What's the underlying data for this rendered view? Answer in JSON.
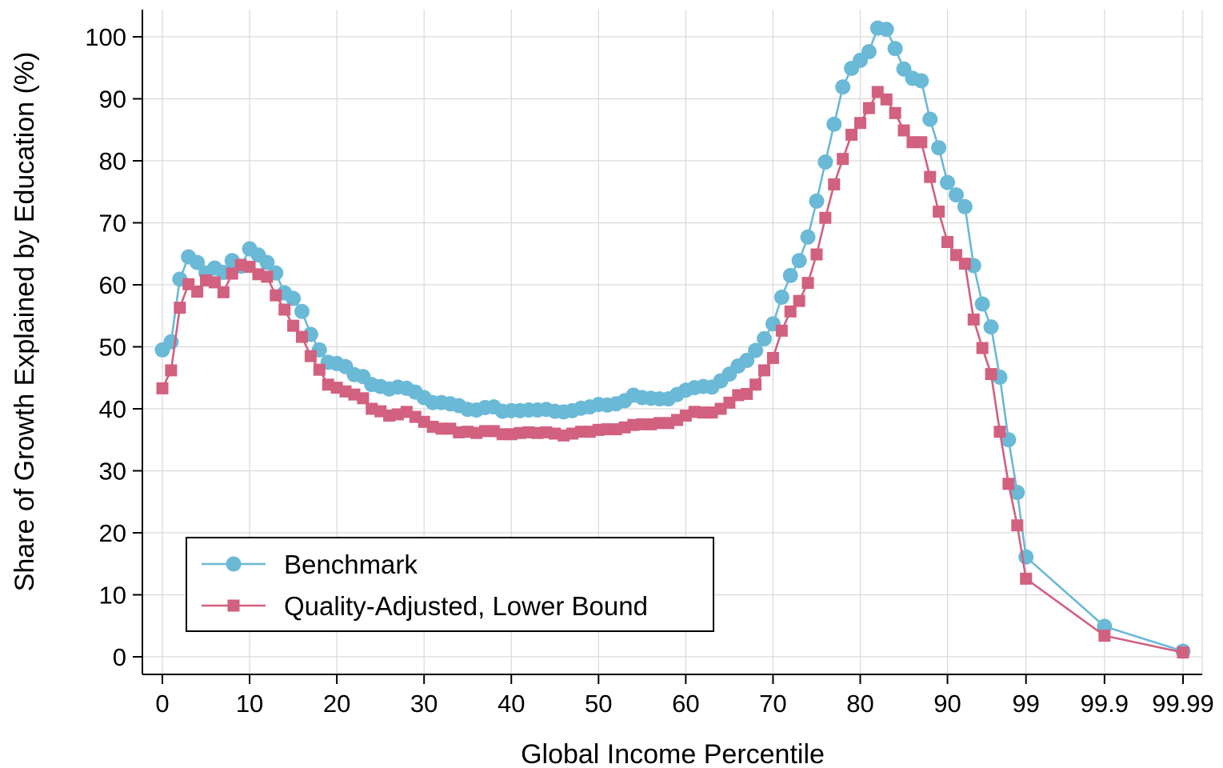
{
  "chart_data": {
    "type": "line",
    "xlabel": "Global Income Percentile",
    "ylabel": "Share of Growth Explained by Education (%)",
    "ylim": [
      0,
      100
    ],
    "yticks": [
      0,
      10,
      20,
      30,
      40,
      50,
      60,
      70,
      80,
      90,
      100
    ],
    "xtick_labels": [
      "0",
      "10",
      "20",
      "30",
      "40",
      "50",
      "60",
      "70",
      "80",
      "90",
      "99",
      "99.9",
      "99.99"
    ],
    "grid": true,
    "legend_position": "bottom-left",
    "x": [
      0,
      1,
      2,
      3,
      4,
      5,
      6,
      7,
      8,
      9,
      10,
      11,
      12,
      13,
      14,
      15,
      16,
      17,
      18,
      19,
      20,
      21,
      22,
      23,
      24,
      25,
      26,
      27,
      28,
      29,
      30,
      31,
      32,
      33,
      34,
      35,
      36,
      37,
      38,
      39,
      40,
      41,
      42,
      43,
      44,
      45,
      46,
      47,
      48,
      49,
      50,
      51,
      52,
      53,
      54,
      55,
      56,
      57,
      58,
      59,
      60,
      61,
      62,
      63,
      64,
      65,
      66,
      67,
      68,
      69,
      70,
      71,
      72,
      73,
      74,
      75,
      76,
      77,
      78,
      79,
      80,
      81,
      82,
      83,
      84,
      85,
      86,
      87,
      88,
      89,
      90,
      91,
      92,
      93,
      94,
      95,
      96,
      97,
      98,
      99,
      "99.9",
      "99.99"
    ],
    "series": [
      {
        "name": "Benchmark",
        "color": "#6ab9d6",
        "marker": "circle",
        "values": [
          49.5,
          50.8,
          60.9,
          64.5,
          63.6,
          61.9,
          62.7,
          62.0,
          63.9,
          63.0,
          65.8,
          64.8,
          63.6,
          61.9,
          58.7,
          57.8,
          55.7,
          52.0,
          49.5,
          47.5,
          47.3,
          46.8,
          45.5,
          45.2,
          43.9,
          43.6,
          43.2,
          43.5,
          43.3,
          42.7,
          41.8,
          41.0,
          41.0,
          40.8,
          40.5,
          39.9,
          39.8,
          40.2,
          40.3,
          39.6,
          39.7,
          39.7,
          39.8,
          39.8,
          39.9,
          39.6,
          39.5,
          39.7,
          40.1,
          40.3,
          40.7,
          40.6,
          40.8,
          41.3,
          42.2,
          41.8,
          41.7,
          41.6,
          41.6,
          42.3,
          43.0,
          43.4,
          43.6,
          43.5,
          44.5,
          45.6,
          46.9,
          47.8,
          49.4,
          51.3,
          53.7,
          58.0,
          61.5,
          63.9,
          67.7,
          73.5,
          79.8,
          85.9,
          91.9,
          94.9,
          96.2,
          97.6,
          101.4,
          101.2,
          98.1,
          94.8,
          93.3,
          92.9,
          86.7,
          82.1,
          76.5,
          74.5,
          72.6,
          63.1,
          56.9,
          53.2,
          45.1,
          35.0,
          26.5,
          16.1,
          4.9,
          0.9
        ]
      },
      {
        "name": "Quality-Adjusted, Lower Bound",
        "color": "#d2607f",
        "marker": "square",
        "values": [
          43.3,
          46.2,
          56.3,
          60.1,
          58.9,
          60.7,
          60.4,
          58.8,
          61.8,
          63.2,
          62.9,
          61.7,
          61.3,
          58.3,
          56.0,
          53.4,
          51.6,
          48.5,
          46.3,
          43.9,
          43.4,
          42.8,
          42.3,
          41.7,
          40.0,
          39.6,
          38.9,
          39.1,
          39.5,
          38.7,
          37.9,
          37.1,
          36.8,
          36.8,
          36.2,
          36.3,
          36.1,
          36.4,
          36.4,
          35.9,
          35.9,
          36.1,
          36.2,
          36.1,
          36.2,
          36.0,
          35.7,
          36.0,
          36.3,
          36.3,
          36.6,
          36.7,
          36.7,
          37.0,
          37.4,
          37.5,
          37.5,
          37.7,
          37.7,
          38.2,
          38.9,
          39.5,
          39.4,
          39.4,
          40.0,
          41.0,
          42.2,
          42.4,
          43.9,
          46.2,
          48.2,
          52.6,
          55.7,
          57.4,
          60.3,
          64.9,
          70.8,
          76.2,
          80.3,
          84.2,
          86.1,
          88.5,
          91.1,
          89.9,
          87.7,
          84.9,
          83.0,
          83.0,
          77.4,
          71.8,
          66.9,
          64.8,
          63.4,
          54.4,
          49.8,
          45.6,
          36.3,
          27.9,
          21.2,
          12.6,
          3.4,
          0.7
        ]
      }
    ]
  }
}
